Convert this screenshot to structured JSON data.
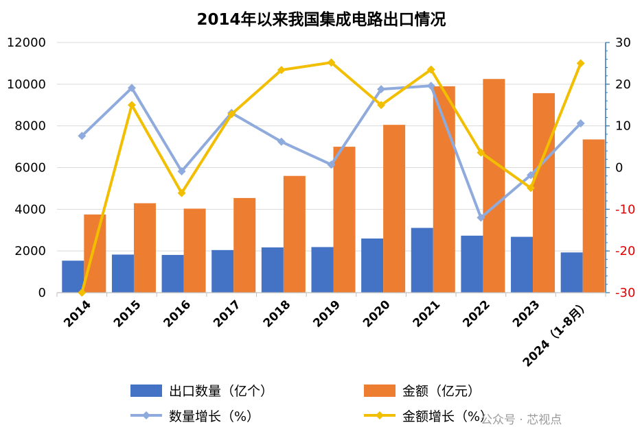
{
  "chart_data": {
    "type": "bar",
    "title": "2014年以来我国集成电路出口情况",
    "categories": [
      "2014",
      "2015",
      "2016",
      "2017",
      "2018",
      "2019",
      "2020",
      "2021",
      "2022",
      "2023",
      "2024（1-8月）"
    ],
    "ylim_left": [
      0,
      12000
    ],
    "yticks_left": [
      "0",
      "2000",
      "4000",
      "6000",
      "8000",
      "10000",
      "12000"
    ],
    "ylim_right": [
      -30,
      30
    ],
    "yticks_right": [
      "-30",
      "-20",
      "-10",
      "0",
      "10",
      "20",
      "30"
    ],
    "grid": true,
    "legend_position": "bottom",
    "series": [
      {
        "name": "出口数量（亿个）",
        "type": "bar",
        "axis": "left",
        "color": "#4472C4",
        "values": [
          1535,
          1827,
          1810,
          2044,
          2171,
          2187,
          2598,
          3107,
          2734,
          2678,
          1930
        ]
      },
      {
        "name": "金额（亿元）",
        "type": "bar",
        "axis": "left",
        "color": "#ED7D31",
        "values": [
          3750,
          4290,
          4030,
          4540,
          5600,
          7000,
          8050,
          9900,
          10250,
          9570,
          7350
        ]
      },
      {
        "name": "数量增长（%）",
        "type": "line",
        "axis": "right",
        "color": "#8FAADC",
        "values": [
          7.6,
          19.1,
          -0.9,
          13.1,
          6.2,
          0.7,
          18.8,
          19.6,
          -12.0,
          -1.8,
          10.6
        ]
      },
      {
        "name": "金额增长（%）",
        "type": "line",
        "axis": "right",
        "color": "#F2BE00",
        "values": [
          -30.0,
          15.0,
          -6.1,
          12.8,
          23.4,
          25.2,
          15.0,
          23.5,
          3.6,
          -4.9,
          25.0
        ]
      }
    ]
  },
  "watermark": "公众号 · 芯视点"
}
